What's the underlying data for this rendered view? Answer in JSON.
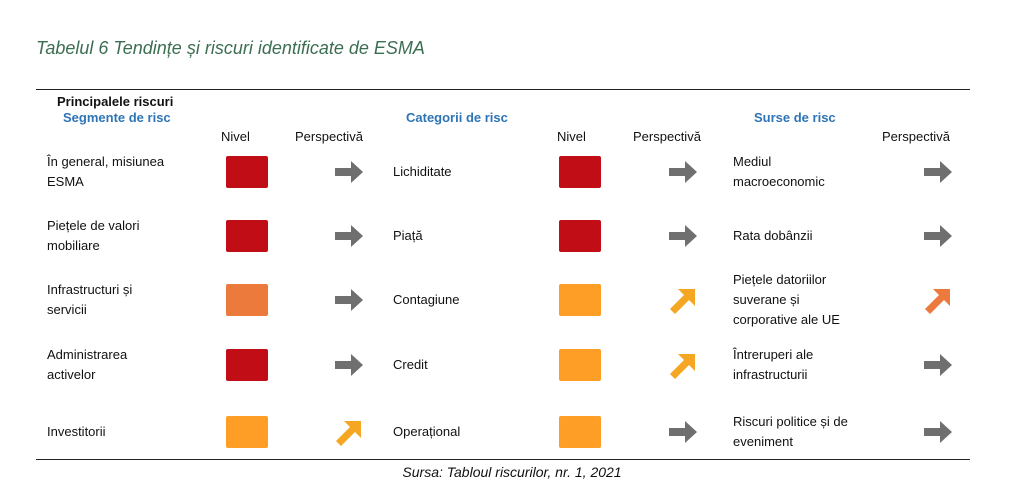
{
  "caption": {
    "number": "Tabelul 6",
    "title": "Tendințe și riscuri identificate de ESMA"
  },
  "header": {
    "main": "Principalele riscuri",
    "col1_title": "Segmente de risc",
    "col2_title": "Categorii de risc",
    "col3_title": "Surse de risc",
    "nivel": "Nivel",
    "perspectiva": "Perspectivă"
  },
  "colors": {
    "red": "#c00d16",
    "dark_orange": "#ec7a3c",
    "orange": "#ff9e26",
    "arrow_gray": "#6f6f6f",
    "arrow_yellow": "#f5a623",
    "blue_header": "#2e75b6",
    "caption_green": "#3c6e52"
  },
  "segments": [
    {
      "label": "În general, misiunea\nESMA",
      "level": "red",
      "trend": "right"
    },
    {
      "label": "Piețele de valori\nmobiliare",
      "level": "red",
      "trend": "right"
    },
    {
      "label": "Infrastructuri și\nservicii",
      "level": "dark_orange",
      "trend": "right"
    },
    {
      "label": "Administrarea\nactivelor",
      "level": "red",
      "trend": "right"
    },
    {
      "label": "Investitorii",
      "level": "orange",
      "trend": "up"
    }
  ],
  "categories": [
    {
      "label": "Lichiditate",
      "level": "red",
      "trend": "right"
    },
    {
      "label": "Piață",
      "level": "red",
      "trend": "right"
    },
    {
      "label": "Contagiune",
      "level": "orange",
      "trend": "up"
    },
    {
      "label": "Credit",
      "level": "orange",
      "trend": "up"
    },
    {
      "label": "Operațional",
      "level": "orange",
      "trend": "right"
    }
  ],
  "sources": [
    {
      "label": "Mediul\nmacroeconomic",
      "trend": "right"
    },
    {
      "label": "Rata dobânzii",
      "trend": "right"
    },
    {
      "label": "Piețele datoriilor\nsuverane și\ncorporative ale UE",
      "trend": "up_orange"
    },
    {
      "label": "Întreruperi ale\ninfrastructurii",
      "trend": "right"
    },
    {
      "label": "Riscuri politice și de\neveniment",
      "trend": "right"
    }
  ],
  "source_note": "Sursa: Tabloul riscurilor, nr. 1, 2021"
}
